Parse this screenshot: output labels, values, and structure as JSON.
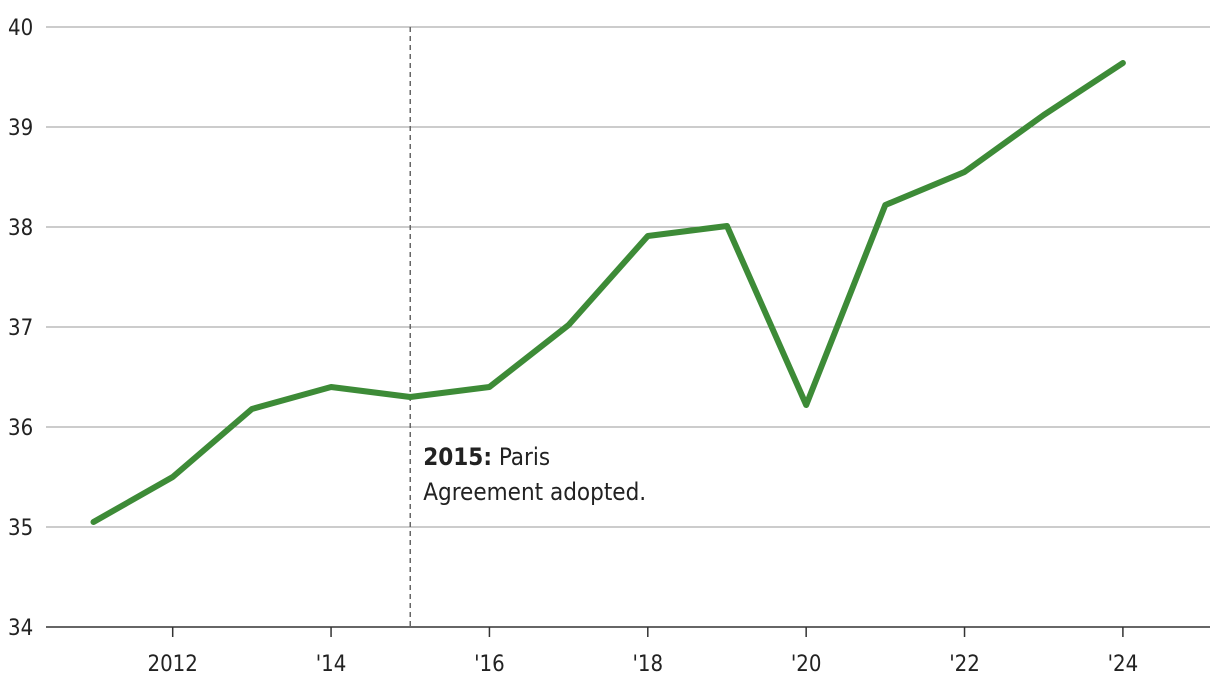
{
  "chart_data": {
    "type": "line",
    "title": "",
    "xlabel": "",
    "ylabel": "",
    "x": [
      2011,
      2012,
      2013,
      2014,
      2015,
      2016,
      2017,
      2018,
      2019,
      2020,
      2021,
      2022,
      2023,
      2024
    ],
    "series": [
      {
        "values": [
          35.05,
          35.5,
          36.18,
          36.4,
          36.3,
          36.4,
          37.02,
          37.91,
          38.01,
          36.22,
          38.22,
          38.55,
          39.12,
          39.64
        ]
      }
    ],
    "xlim": [
      2010.4,
      2025.1
    ],
    "ylim": [
      34,
      40
    ],
    "y_ticks": [
      {
        "value": 34,
        "label": "34"
      },
      {
        "value": 35,
        "label": "35"
      },
      {
        "value": 36,
        "label": "36"
      },
      {
        "value": 37,
        "label": "37"
      },
      {
        "value": 38,
        "label": "38"
      },
      {
        "value": 39,
        "label": "39"
      },
      {
        "value": 40,
        "label": "40"
      }
    ],
    "x_ticks": [
      {
        "value": 2012,
        "label": "2012"
      },
      {
        "value": 2014,
        "label": "'14"
      },
      {
        "value": 2016,
        "label": "'16"
      },
      {
        "value": 2018,
        "label": "'18"
      },
      {
        "value": 2020,
        "label": "'20"
      },
      {
        "value": 2022,
        "label": "'22"
      },
      {
        "value": 2024,
        "label": "'24"
      }
    ],
    "grid": "horizontal",
    "colors": {
      "line": "#3d8b37",
      "grid": "#9a9a9a",
      "axis": "#333333",
      "reference": "#666666"
    },
    "annotation": {
      "x": 2015,
      "bold": "2015:",
      "line1": " Paris",
      "line2": "Agreement adopted."
    }
  }
}
